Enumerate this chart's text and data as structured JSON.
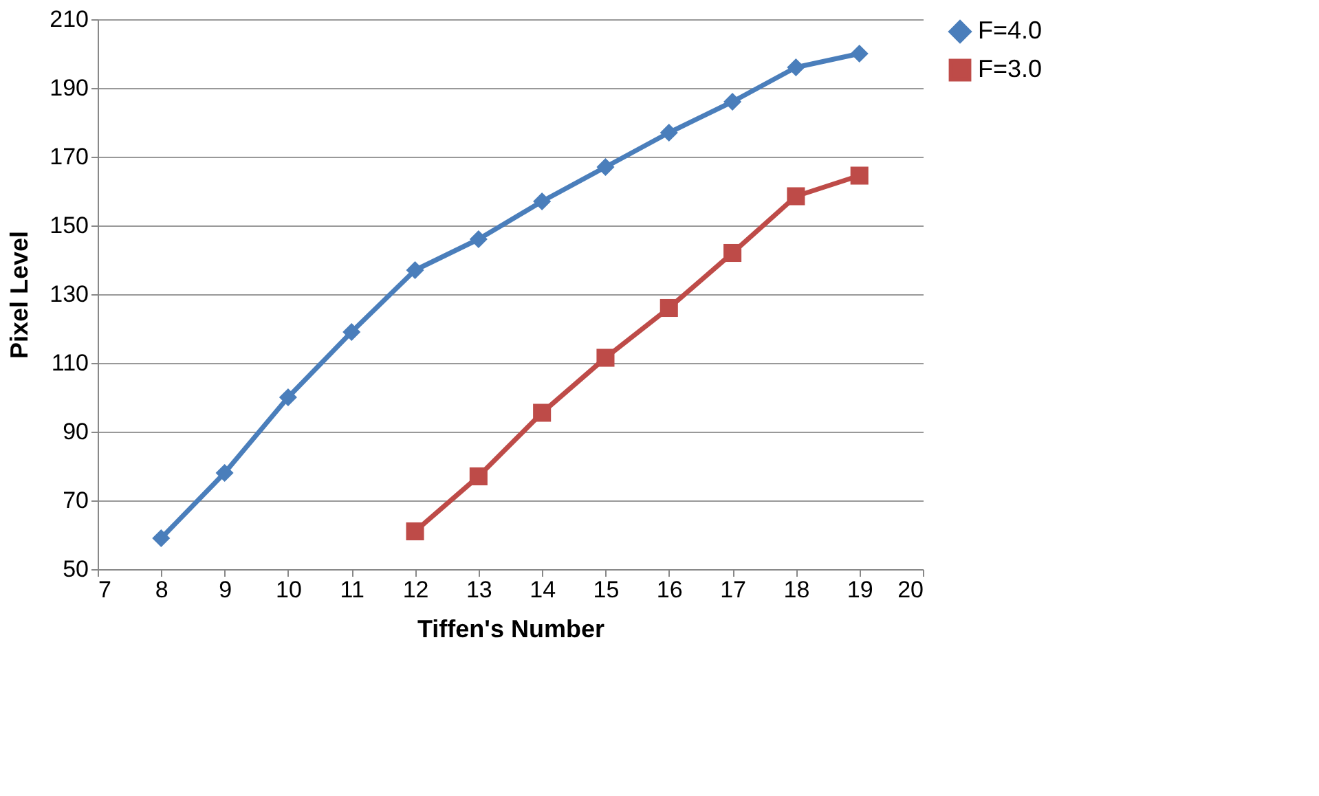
{
  "chart_data": {
    "type": "line",
    "xlabel": "Tiffen's Number",
    "ylabel": "Pixel Level",
    "xlim": [
      7,
      20
    ],
    "xticks": [
      7,
      8,
      9,
      10,
      11,
      12,
      13,
      14,
      15,
      16,
      17,
      18,
      19,
      20
    ],
    "ylim": [
      50,
      210
    ],
    "yticks": [
      50,
      70,
      90,
      110,
      130,
      150,
      170,
      190,
      210
    ],
    "grid": "y",
    "legend": "right",
    "line_style": "solid",
    "series": [
      {
        "name": "F=4.0",
        "color": "#4a7ebb",
        "marker": "diamond",
        "x": [
          8,
          9,
          10,
          11,
          12,
          13,
          14,
          15,
          16,
          17,
          18,
          19
        ],
        "values": [
          59,
          78,
          100,
          119,
          137,
          146,
          157,
          167,
          177,
          186,
          196,
          200
        ]
      },
      {
        "name": "F=3.0",
        "color": "#be4b48",
        "marker": "square",
        "x": [
          12,
          13,
          14,
          15,
          16,
          17,
          18,
          19
        ],
        "values": [
          61,
          77,
          95.5,
          111.5,
          126,
          142,
          158.5,
          164.5
        ]
      }
    ]
  }
}
